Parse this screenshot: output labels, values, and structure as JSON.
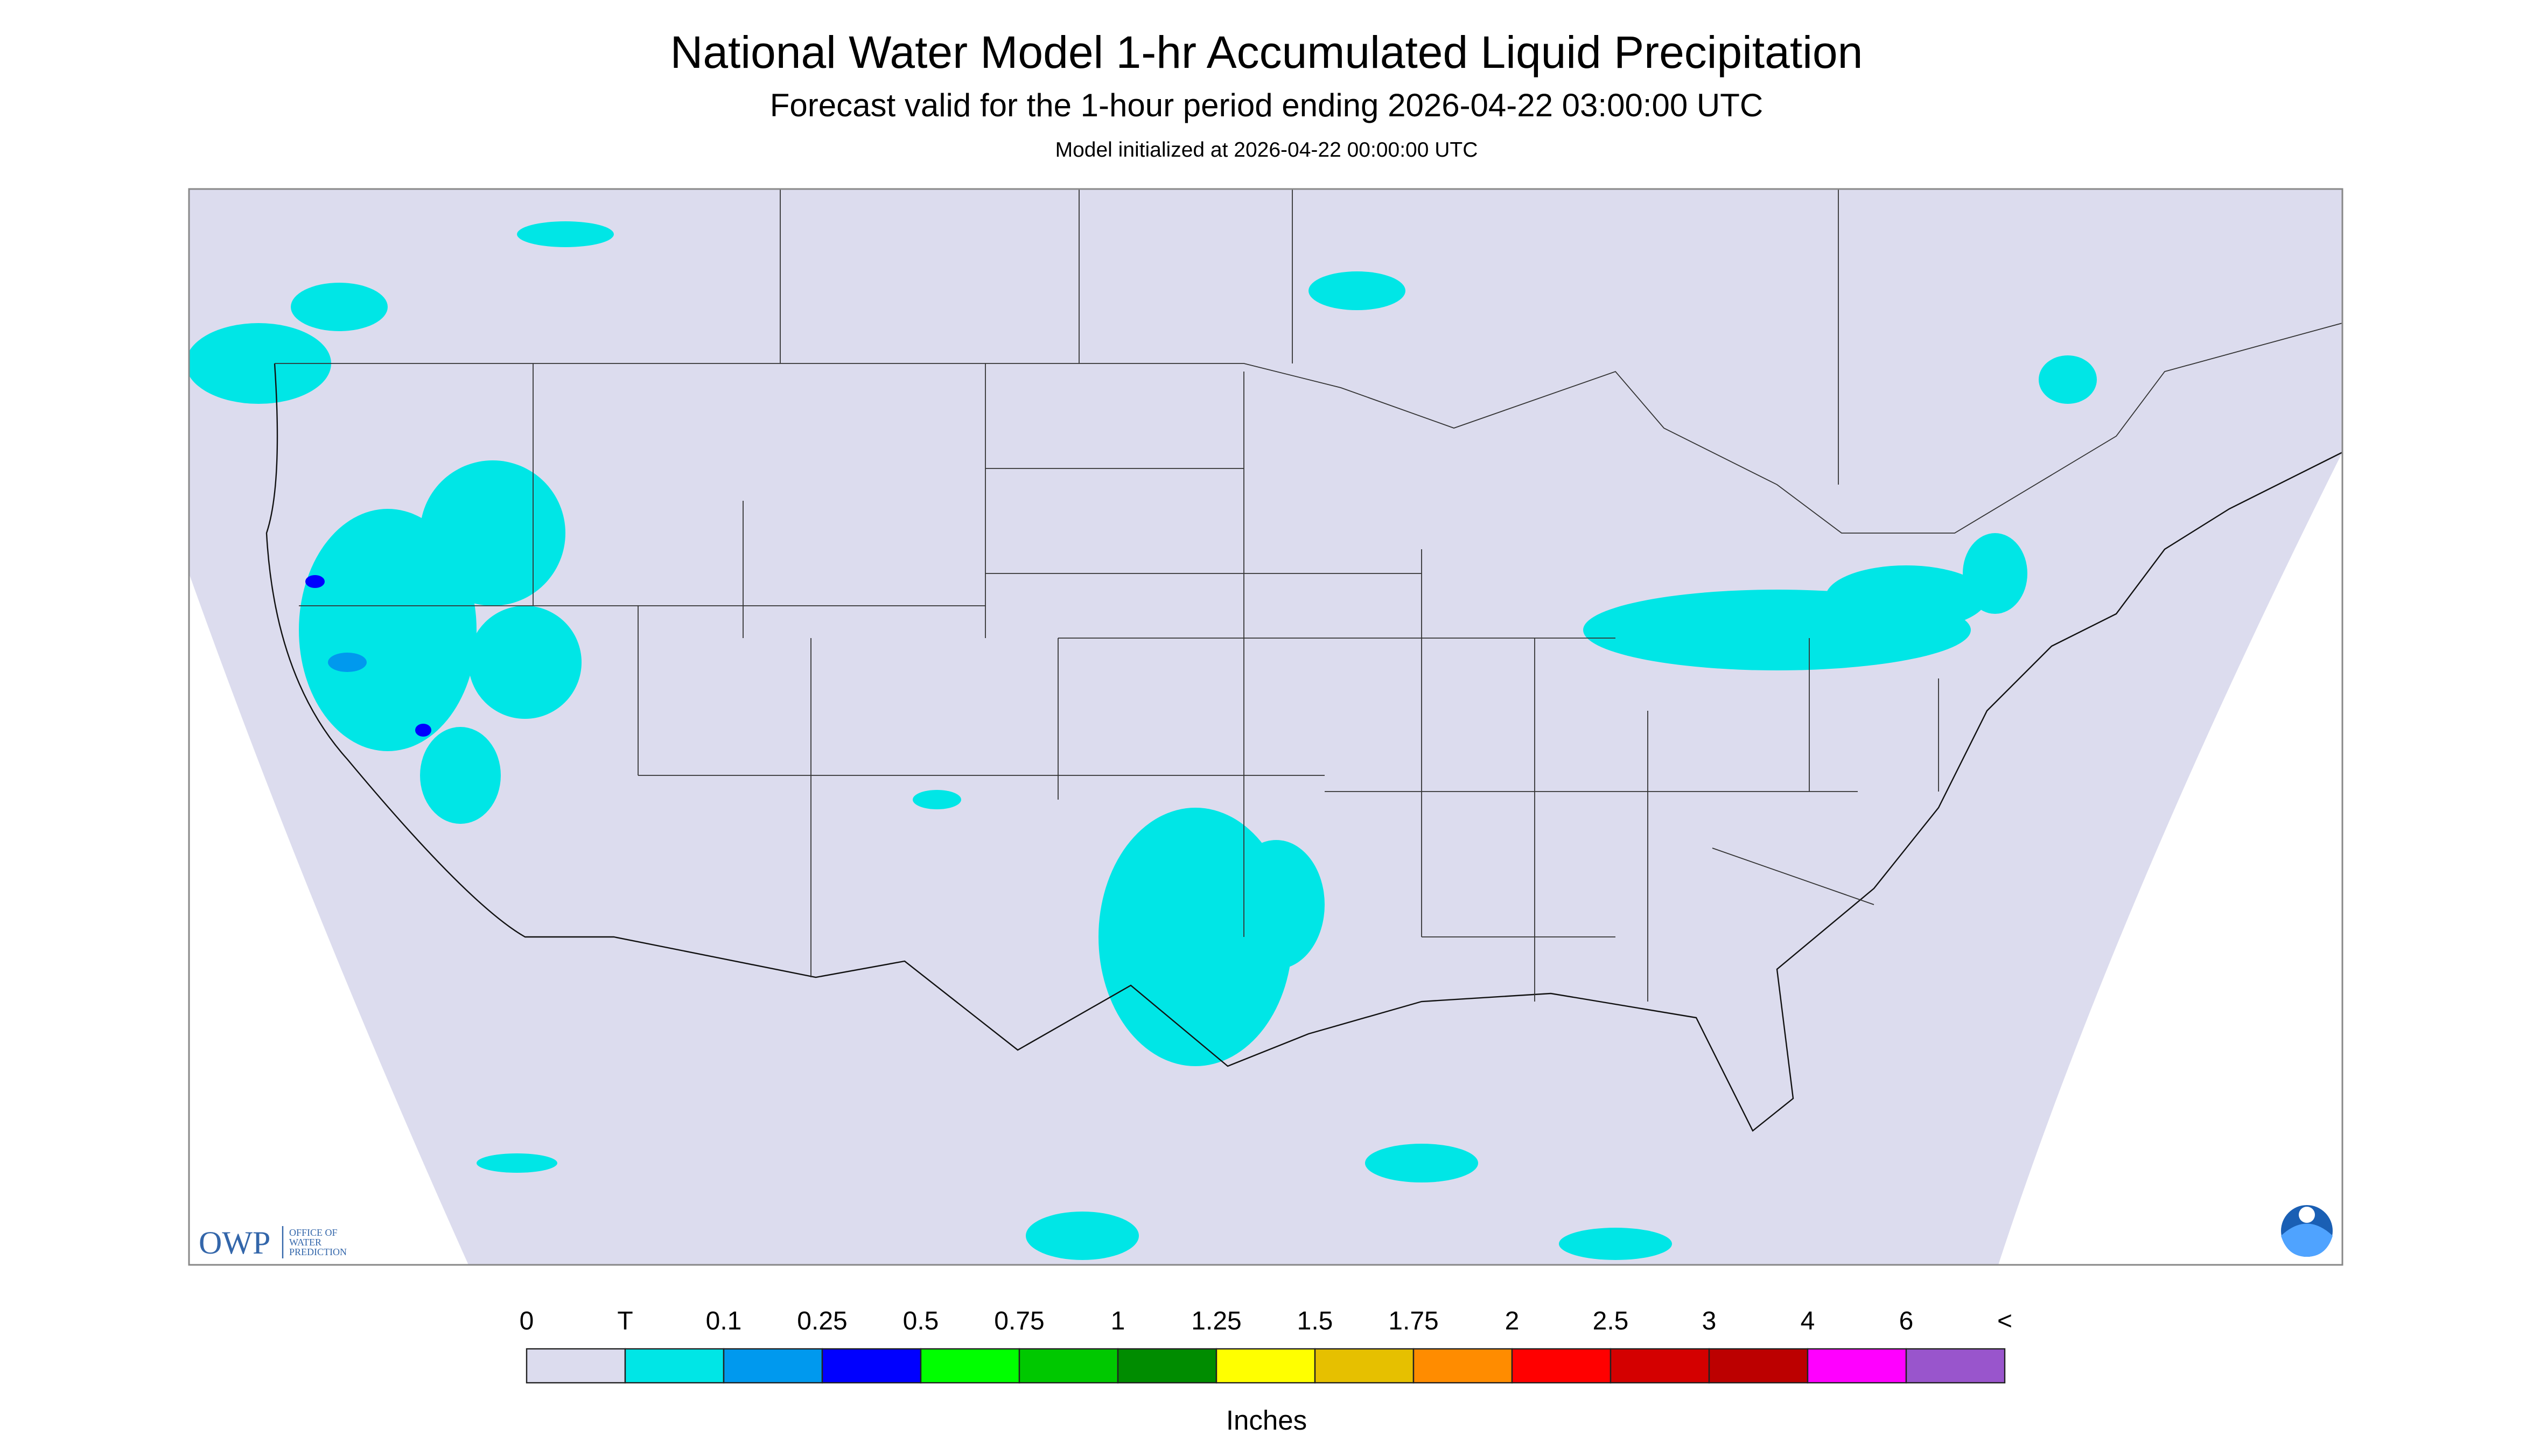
{
  "header": {
    "title": "National Water Model 1-hr Accumulated Liquid Precipitation",
    "subtitle": "Forecast valid for the 1-hour period ending 2026-04-22 03:00:00 UTC",
    "initialized": "Model initialized at 2026-04-22 00:00:00 UTC"
  },
  "logo": {
    "acronym": "OWP",
    "lines": [
      "OFFICE OF",
      "WATER",
      "PREDICTION"
    ]
  },
  "legend": {
    "labels": [
      "0",
      "T",
      "0.1",
      "0.25",
      "0.5",
      "0.75",
      "1",
      "1.25",
      "1.5",
      "1.75",
      "2",
      "2.5",
      "3",
      "4",
      "6",
      "<"
    ],
    "colors": [
      "#dcdcee",
      "#00e6e6",
      "#0099ee",
      "#0000ff",
      "#00ff00",
      "#00c800",
      "#008c00",
      "#ffff00",
      "#e6c000",
      "#ff8c00",
      "#ff0000",
      "#d40000",
      "#bc0000",
      "#ff00ff",
      "#9955cc"
    ],
    "unit": "Inches"
  }
}
